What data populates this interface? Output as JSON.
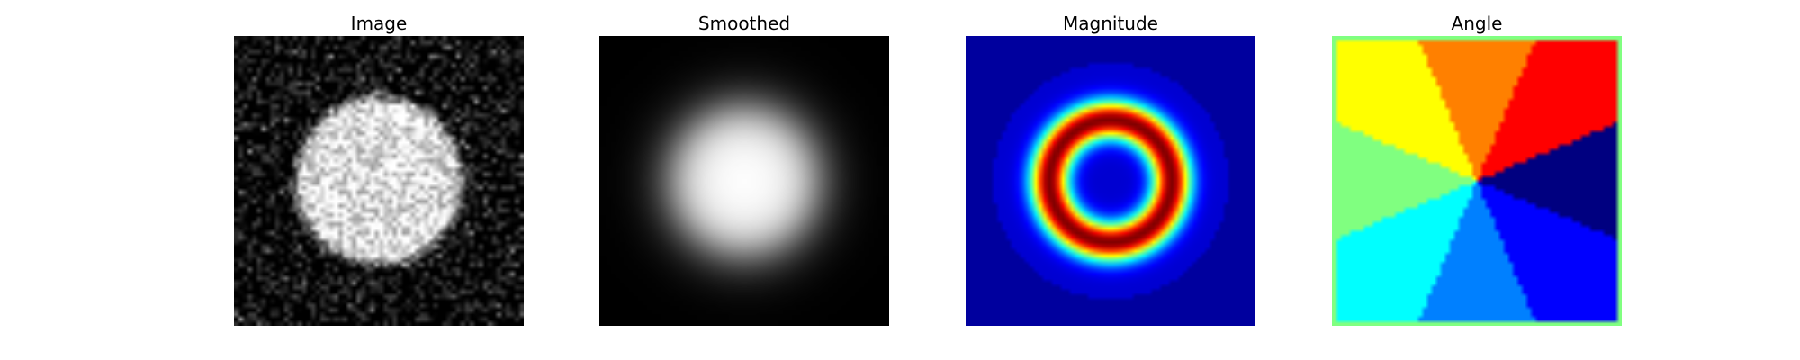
{
  "panels": [
    {
      "title": "Image",
      "kind": "noisy-disk"
    },
    {
      "title": "Smoothed",
      "kind": "smoothed-disk"
    },
    {
      "title": "Magnitude",
      "kind": "gradient-magnitude",
      "colormap": "jet"
    },
    {
      "title": "Angle",
      "kind": "gradient-angle",
      "colormap": "jet"
    }
  ]
}
